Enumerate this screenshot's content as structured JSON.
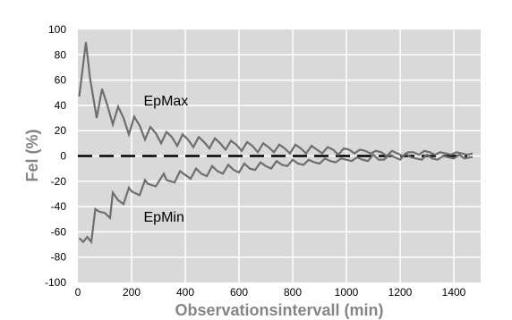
{
  "chart_data": {
    "type": "line",
    "xlabel": "Observationsintervall (min)",
    "ylabel": "Fel (%)",
    "xlim": [
      0,
      1500
    ],
    "ylim": [
      -100,
      100
    ],
    "x_ticks": [
      0,
      200,
      400,
      600,
      800,
      1000,
      1200,
      1400
    ],
    "y_ticks": [
      100,
      80,
      60,
      40,
      20,
      0,
      -20,
      -40,
      -60,
      -80,
      -100
    ],
    "grid": true,
    "legend": "none",
    "zero_line": {
      "y": 0,
      "style": "dashed",
      "color": "#000000"
    },
    "colors": {
      "outer_background": "#ffffff",
      "plot_background": "#d9d9d9",
      "gridline": "#ffffff",
      "series_line": "#6e6e6e",
      "axis_title": "#858585"
    },
    "series": [
      {
        "name": "EpMax",
        "x": [
          5,
          30,
          45,
          70,
          90,
          110,
          130,
          150,
          170,
          190,
          210,
          230,
          250,
          270,
          290,
          310,
          330,
          350,
          370,
          390,
          410,
          430,
          450,
          470,
          490,
          510,
          530,
          550,
          570,
          590,
          610,
          630,
          650,
          670,
          690,
          710,
          730,
          750,
          770,
          790,
          810,
          830,
          850,
          870,
          890,
          910,
          930,
          950,
          970,
          990,
          1010,
          1030,
          1050,
          1070,
          1090,
          1110,
          1130,
          1150,
          1170,
          1190,
          1210,
          1230,
          1250,
          1270,
          1290,
          1310,
          1330,
          1350,
          1370,
          1390,
          1410,
          1430,
          1450,
          1470
        ],
        "values": [
          47,
          90,
          62,
          30,
          53,
          40,
          25,
          39,
          30,
          17,
          31,
          24,
          13,
          23,
          18,
          10,
          19,
          15,
          8,
          17,
          13,
          7,
          15,
          11,
          6,
          14,
          10,
          5,
          12,
          9,
          4,
          11,
          8,
          3,
          10,
          7,
          3,
          9,
          6,
          2,
          9,
          6,
          2,
          8,
          5,
          2,
          7,
          5,
          1,
          6,
          5,
          2,
          5,
          4,
          2,
          4,
          3,
          0,
          4,
          2,
          0,
          3,
          3,
          1,
          4,
          3,
          1,
          3,
          2,
          1,
          3,
          2,
          1,
          2
        ]
      },
      {
        "name": "EpMin",
        "x": [
          5,
          20,
          35,
          50,
          65,
          80,
          100,
          120,
          130,
          150,
          170,
          190,
          200,
          230,
          250,
          260,
          290,
          320,
          330,
          360,
          380,
          400,
          420,
          440,
          460,
          480,
          500,
          520,
          540,
          560,
          580,
          600,
          620,
          640,
          660,
          680,
          700,
          720,
          740,
          760,
          780,
          800,
          820,
          840,
          860,
          880,
          900,
          920,
          940,
          960,
          980,
          1000,
          1020,
          1040,
          1060,
          1080,
          1100,
          1120,
          1140,
          1160,
          1180,
          1200,
          1220,
          1240,
          1260,
          1280,
          1300,
          1320,
          1340,
          1360,
          1380,
          1400,
          1420,
          1440,
          1460,
          1470
        ],
        "values": [
          -65,
          -68,
          -64,
          -68,
          -42,
          -44,
          -45,
          -49,
          -29,
          -35,
          -38,
          -25,
          -28,
          -31,
          -19,
          -22,
          -24,
          -14,
          -19,
          -21,
          -12,
          -15,
          -18,
          -10,
          -14,
          -16,
          -8,
          -12,
          -14,
          -7,
          -11,
          -13,
          -6,
          -10,
          -11,
          -5,
          -8,
          -10,
          -4,
          -7,
          -8,
          -3,
          -6,
          -7,
          -3,
          -5,
          -6,
          -2,
          -4,
          -5,
          -2,
          -3,
          -4,
          -1,
          -3,
          -4,
          1,
          -3,
          -3,
          1,
          -1,
          -3,
          2,
          -1,
          -2,
          -3,
          1,
          -2,
          -3,
          0,
          -1,
          -2,
          1,
          -2,
          -1,
          -1
        ]
      }
    ],
    "annotations": [
      {
        "text": "EpMax",
        "x": 245,
        "y": 40
      },
      {
        "text": "EpMin",
        "x": 245,
        "y": -52
      }
    ]
  }
}
